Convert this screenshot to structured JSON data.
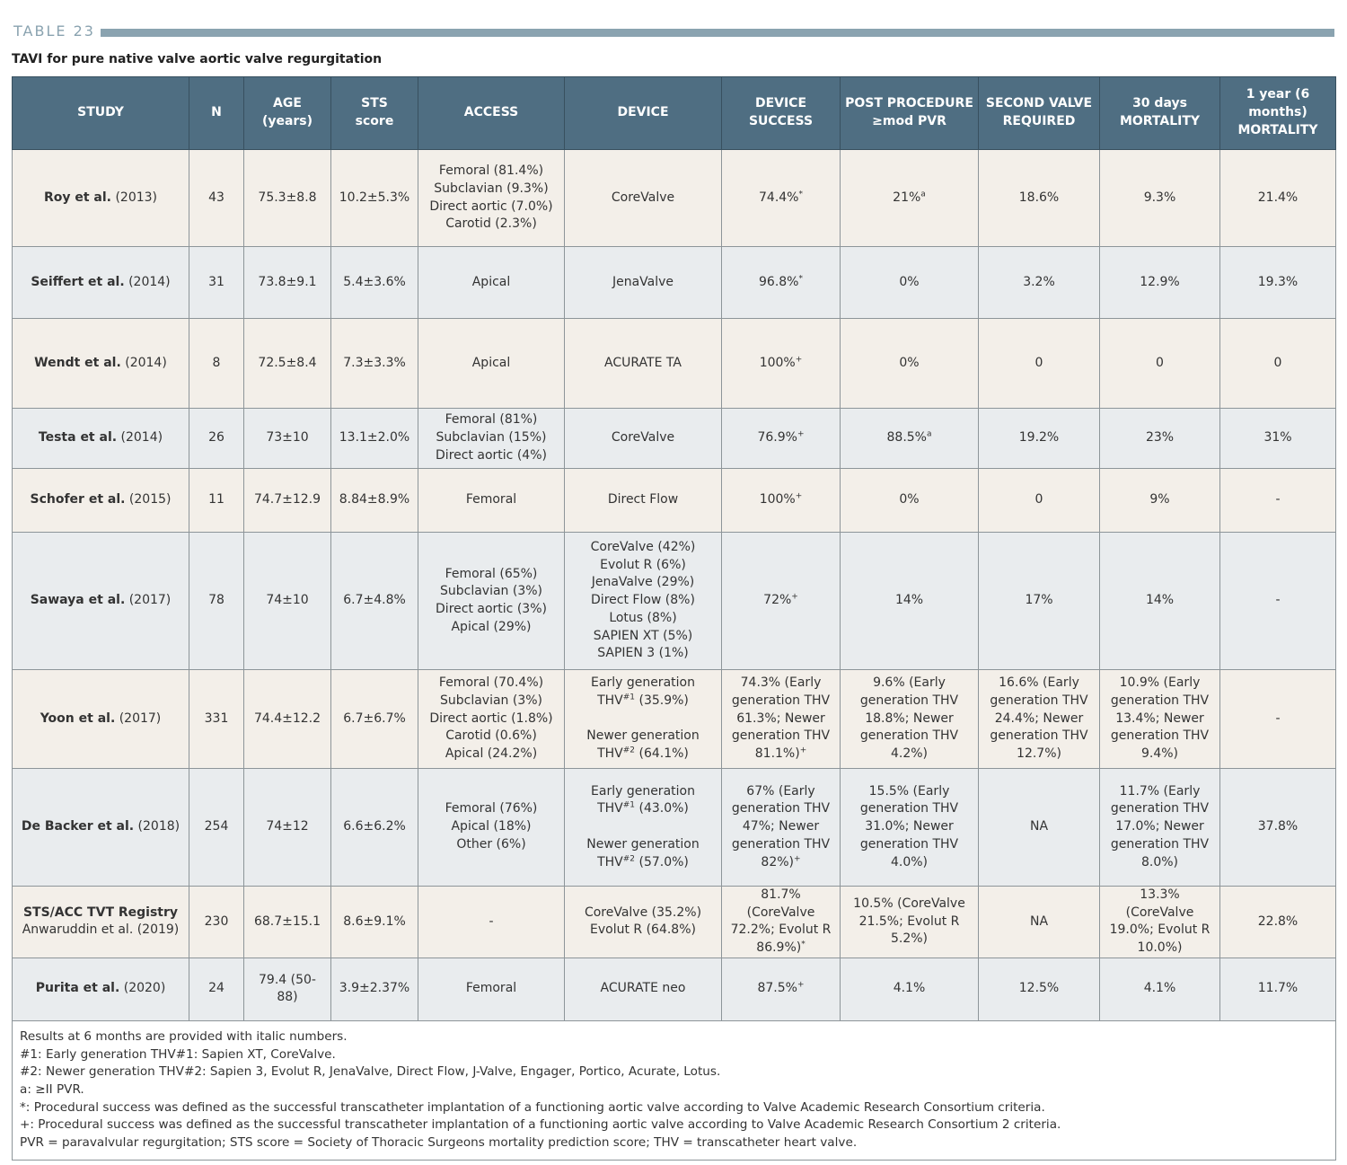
{
  "header": {
    "label": "TABLE 23",
    "title": "TAVI for pure native valve aortic valve regurgitation"
  },
  "table": {
    "columns": [
      [
        "STUDY"
      ],
      [
        "N"
      ],
      [
        "AGE",
        "(years)"
      ],
      [
        "STS",
        "score"
      ],
      [
        "ACCESS"
      ],
      [
        "DEVICE"
      ],
      [
        "DEVICE",
        "SUCCESS"
      ],
      [
        "POST PROCEDURE",
        "≥mod PVR"
      ],
      [
        "SECOND VALVE",
        "REQUIRED"
      ],
      [
        "30 days",
        "MORTALITY"
      ],
      [
        "1 year (6 months)",
        "MORTALITY"
      ]
    ],
    "rows": [
      [
        [
          [
            {
              "b": "Roy et al."
            },
            " (2013)"
          ]
        ],
        [
          "43"
        ],
        [
          "75.3±8.8"
        ],
        [
          "10.2±5.3%"
        ],
        [
          "Femoral (81.4%)",
          "Subclavian (9.3%)",
          "Direct aortic (7.0%)",
          "Carotid (2.3%)"
        ],
        [
          "CoreValve"
        ],
        [
          [
            "74.4%",
            {
              "sup": "*"
            }
          ]
        ],
        [
          [
            "21%",
            {
              "sup": "a"
            }
          ]
        ],
        [
          "18.6%"
        ],
        [
          "9.3%"
        ],
        [
          "21.4%"
        ]
      ],
      [
        [
          [
            {
              "b": "Seiffert et al."
            },
            " (2014)"
          ]
        ],
        [
          "31"
        ],
        [
          "73.8±9.1"
        ],
        [
          "5.4±3.6%"
        ],
        [
          "Apical"
        ],
        [
          "JenaValve"
        ],
        [
          [
            "96.8%",
            {
              "sup": "*"
            }
          ]
        ],
        [
          "0%"
        ],
        [
          "3.2%"
        ],
        [
          "12.9%"
        ],
        [
          "19.3%"
        ]
      ],
      [
        [
          [
            {
              "b": "Wendt et al."
            },
            " (2014)"
          ]
        ],
        [
          "8"
        ],
        [
          "72.5±8.4"
        ],
        [
          "7.3±3.3%"
        ],
        [
          "Apical"
        ],
        [
          "ACURATE TA"
        ],
        [
          [
            "100%",
            {
              "sup": "+"
            }
          ]
        ],
        [
          "0%"
        ],
        [
          "0"
        ],
        [
          "0"
        ],
        [
          "0"
        ]
      ],
      [
        [
          [
            {
              "b": "Testa et al."
            },
            " (2014)"
          ]
        ],
        [
          "26"
        ],
        [
          "73±10"
        ],
        [
          "13.1±2.0%"
        ],
        [
          "Femoral (81%)",
          "Subclavian (15%)",
          "Direct aortic (4%)"
        ],
        [
          "CoreValve"
        ],
        [
          [
            "76.9%",
            {
              "sup": "+"
            }
          ]
        ],
        [
          [
            "88.5%",
            {
              "sup": "a"
            }
          ]
        ],
        [
          "19.2%"
        ],
        [
          "23%"
        ],
        [
          "31%"
        ]
      ],
      [
        [
          [
            {
              "b": "Schofer et al."
            },
            " (2015)"
          ]
        ],
        [
          "11"
        ],
        [
          "74.7±12.9"
        ],
        [
          "8.84±8.9%"
        ],
        [
          "Femoral"
        ],
        [
          "Direct Flow"
        ],
        [
          [
            "100%",
            {
              "sup": "+"
            }
          ]
        ],
        [
          "0%"
        ],
        [
          "0"
        ],
        [
          "9%"
        ],
        [
          "-"
        ]
      ],
      [
        [
          [
            {
              "b": "Sawaya et al."
            },
            " (2017)"
          ]
        ],
        [
          "78"
        ],
        [
          "74±10"
        ],
        [
          "6.7±4.8%"
        ],
        [
          "Femoral (65%)",
          "Subclavian (3%)",
          "Direct aortic (3%)",
          "Apical (29%)"
        ],
        [
          "CoreValve (42%)",
          "Evolut R (6%)",
          "JenaValve (29%)",
          "Direct Flow (8%)",
          "Lotus (8%)",
          "SAPIEN XT (5%)",
          "SAPIEN 3 (1%)"
        ],
        [
          [
            "72%",
            {
              "sup": "+"
            }
          ]
        ],
        [
          "14%"
        ],
        [
          "17%"
        ],
        [
          "14%"
        ],
        [
          "-"
        ]
      ],
      [
        [
          [
            {
              "b": "Yoon et al."
            },
            " (2017)"
          ]
        ],
        [
          "331"
        ],
        [
          "74.4±12.2"
        ],
        [
          "6.7±6.7%"
        ],
        [
          "Femoral (70.4%)",
          "Subclavian (3%)",
          "Direct aortic (1.8%)",
          "Carotid (0.6%)",
          "Apical (24.2%)"
        ],
        [
          [
            "Early generation THV",
            {
              "sup": "#1"
            },
            " (35.9%)"
          ],
          [
            "Newer generation THV",
            {
              "sup": "#2"
            },
            " (64.1%)"
          ]
        ],
        [
          [
            "74.3% (Early generation THV 61.3%; Newer generation THV 81.1%)",
            {
              "sup": "+"
            }
          ]
        ],
        [
          "9.6% (Early generation THV 18.8%; Newer generation THV 4.2%)"
        ],
        [
          "16.6% (Early generation THV 24.4%; Newer generation THV 12.7%)"
        ],
        [
          "10.9% (Early generation THV 13.4%; Newer generation THV 9.4%)"
        ],
        [
          "-"
        ]
      ],
      [
        [
          [
            {
              "b": "De Backer et al."
            },
            " (2018)"
          ]
        ],
        [
          "254"
        ],
        [
          "74±12"
        ],
        [
          "6.6±6.2%"
        ],
        [
          "Femoral (76%)",
          "Apical (18%)",
          "Other (6%)"
        ],
        [
          [
            "Early generation THV",
            {
              "sup": "#1"
            },
            " (43.0%)"
          ],
          [
            "Newer generation THV",
            {
              "sup": "#2"
            },
            " (57.0%)"
          ]
        ],
        [
          [
            "67% (Early generation THV 47%; Newer generation THV 82%)",
            {
              "sup": "+"
            }
          ]
        ],
        [
          "15.5% (Early generation THV 31.0%; Newer generation THV 4.0%)"
        ],
        [
          "NA"
        ],
        [
          "11.7% (Early generation THV 17.0%; Newer generation THV 8.0%)"
        ],
        [
          "37.8%"
        ]
      ],
      [
        [
          [
            {
              "b": "STS/ACC TVT Registry"
            }
          ],
          "Anwaruddin et al. (2019)"
        ],
        [
          "230"
        ],
        [
          "68.7±15.1"
        ],
        [
          "8.6±9.1%"
        ],
        [
          "-"
        ],
        [
          "CoreValve (35.2%)",
          "Evolut R (64.8%)"
        ],
        [
          [
            "81.7% (CoreValve 72.2%; Evolut R 86.9%)",
            {
              "sup": "*"
            }
          ]
        ],
        [
          "10.5% (CoreValve 21.5%; Evolut R 5.2%)"
        ],
        [
          "NA"
        ],
        [
          "13.3% (CoreValve 19.0%; Evolut R 10.0%)"
        ],
        [
          "22.8%"
        ]
      ],
      [
        [
          [
            {
              "b": "Purita et al."
            },
            " (2020)"
          ]
        ],
        [
          "24"
        ],
        [
          "79.4 (50-88)"
        ],
        [
          "3.9±2.37%"
        ],
        [
          "Femoral"
        ],
        [
          "ACURATE neo"
        ],
        [
          [
            "87.5%",
            {
              "sup": "+"
            }
          ]
        ],
        [
          "4.1%"
        ],
        [
          "12.5%"
        ],
        [
          "4.1%"
        ],
        [
          "11.7%"
        ]
      ]
    ],
    "notes": [
      "Results at 6 months are provided with italic numbers.",
      "#1: Early generation THV#1: Sapien XT, CoreValve.",
      "#2: Newer generation THV#2: Sapien 3, Evolut R, JenaValve, Direct Flow, J-Valve, Engager, Portico, Acurate, Lotus.",
      "a: ≥II PVR.",
      "*: Procedural success was defined as the successful transcatheter implantation of a functioning aortic valve according to Valve Academic Research Consortium criteria.",
      "+: Procedural success was defined as the successful transcatheter implantation of a functioning aortic valve according to Valve Academic Research Consortium 2 criteria.",
      "PVR = paravalvular regurgitation; STS score = Society of Thoracic Surgeons mortality prediction score; THV = transcatheter heart valve."
    ]
  }
}
